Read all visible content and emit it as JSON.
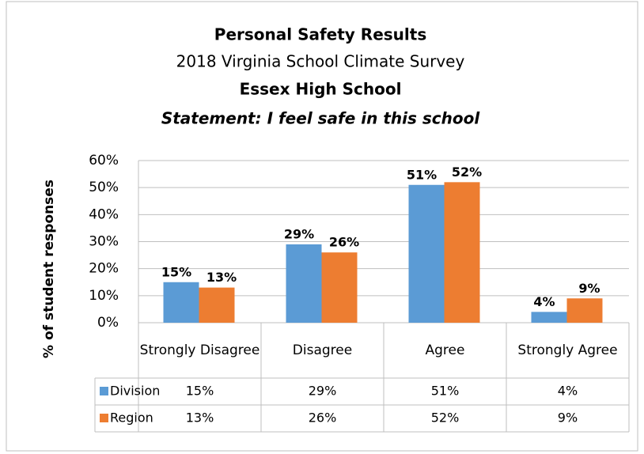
{
  "chart_data": {
    "type": "bar",
    "title": "Personal Safety Results",
    "subtitle": "2018 Virginia School Climate Survey",
    "school": "Essex High School",
    "statement": "Statement: I feel safe in this school",
    "y_label": "% of student responses",
    "categories": [
      "Strongly Disagree",
      "Disagree",
      "Agree",
      "Strongly Agree"
    ],
    "series": [
      {
        "name": "Division",
        "color": "#5b9bd5",
        "values": [
          15,
          29,
          51,
          4
        ],
        "value_labels": [
          "15%",
          "29%",
          "51%",
          "4%"
        ]
      },
      {
        "name": "Region",
        "color": "#ed7d31",
        "values": [
          13,
          26,
          52,
          9
        ],
        "value_labels": [
          "13%",
          "26%",
          "52%",
          "9%"
        ]
      }
    ],
    "ylim": [
      0,
      60
    ],
    "yticks": [
      {
        "value": 0,
        "label": "0%"
      },
      {
        "value": 10,
        "label": "10%"
      },
      {
        "value": 20,
        "label": "20%"
      },
      {
        "value": 30,
        "label": "30%"
      },
      {
        "value": 40,
        "label": "40%"
      },
      {
        "value": 50,
        "label": "50%"
      },
      {
        "value": 60,
        "label": "60%"
      }
    ],
    "grid": true,
    "data_table": true
  }
}
